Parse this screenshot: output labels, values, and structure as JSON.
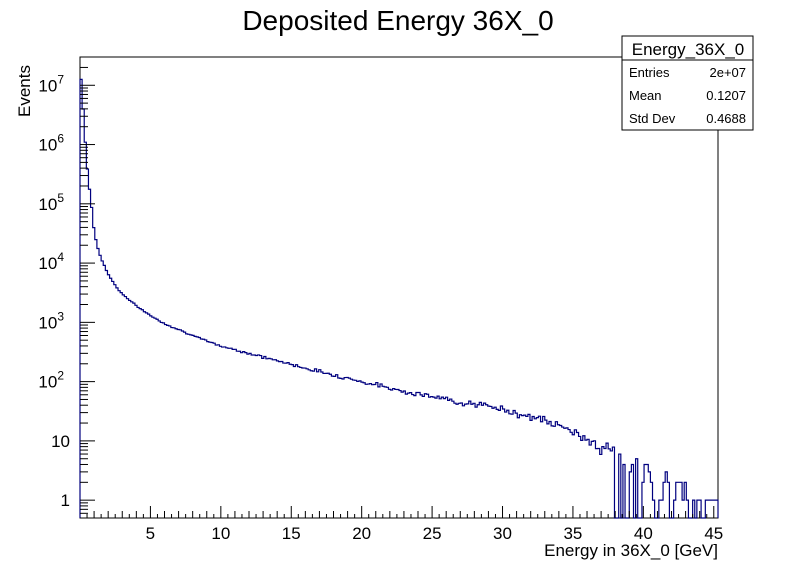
{
  "chart_data": {
    "type": "histogram",
    "title": "Deposited Energy 36X_0",
    "xlabel": "Energy in 36X_0 [GeV]",
    "ylabel": "Events",
    "xlim": [
      0,
      45.3
    ],
    "ylim": [
      0.5,
      30000000
    ],
    "y_scale": "log",
    "grid": false,
    "x_ticks": [
      "5",
      "10",
      "15",
      "20",
      "25",
      "30",
      "35",
      "40",
      "45"
    ],
    "y_ticks": [
      {
        "base": "1",
        "exp": ""
      },
      {
        "base": "10",
        "exp": ""
      },
      {
        "base": "10",
        "exp": "2"
      },
      {
        "base": "10",
        "exp": "3"
      },
      {
        "base": "10",
        "exp": "4"
      },
      {
        "base": "10",
        "exp": "5"
      },
      {
        "base": "10",
        "exp": "6"
      },
      {
        "base": "10",
        "exp": "7"
      }
    ],
    "line_color": "#00007f",
    "stats": {
      "name": "Energy_36X_0",
      "rows": [
        {
          "label": "Entries",
          "value": "2e+07"
        },
        {
          "label": "Mean",
          "value": "0.1207"
        },
        {
          "label": "Std Dev",
          "value": "0.4688"
        }
      ]
    },
    "bins_key_points": [
      [
        0.0,
        20000000
      ],
      [
        0.15,
        8000000
      ],
      [
        0.3,
        2000000
      ],
      [
        0.45,
        600000
      ],
      [
        0.6,
        250000
      ],
      [
        0.8,
        100000
      ],
      [
        1.0,
        35000
      ],
      [
        1.2,
        20000
      ],
      [
        1.5,
        12000
      ],
      [
        2.0,
        6500
      ],
      [
        2.5,
        4200
      ],
      [
        3.0,
        3000
      ],
      [
        4.0,
        1900
      ],
      [
        5.0,
        1300
      ],
      [
        6.0,
        950
      ],
      [
        7.0,
        760
      ],
      [
        8.0,
        600
      ],
      [
        9.0,
        480
      ],
      [
        10.0,
        400
      ],
      [
        12.0,
        300
      ],
      [
        14.0,
        225
      ],
      [
        16.0,
        170
      ],
      [
        18.0,
        130
      ],
      [
        20.0,
        100
      ],
      [
        22.0,
        78
      ],
      [
        24.0,
        62
      ],
      [
        26.0,
        50
      ],
      [
        28.0,
        42
      ],
      [
        30.0,
        34
      ],
      [
        32.0,
        26
      ],
      [
        34.0,
        18
      ],
      [
        36.0,
        11
      ],
      [
        38.0,
        6
      ],
      [
        40.0,
        3
      ],
      [
        42.0,
        1.6
      ],
      [
        44.0,
        0.9
      ],
      [
        45.3,
        0.7
      ]
    ]
  }
}
